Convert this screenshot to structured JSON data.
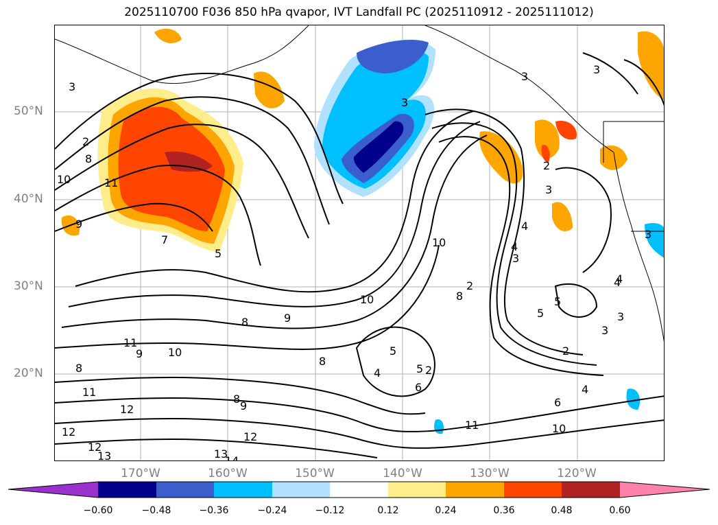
{
  "title": "2025110700 F036 850 hPa qvapor, IVT Landfall PC (2025110912 - 2025111012)",
  "axes": {
    "lat_labels": [
      "50°N",
      "40°N",
      "30°N",
      "20°N"
    ],
    "lon_labels": [
      "170°W",
      "160°W",
      "150°W",
      "140°W",
      "130°W",
      "120°W"
    ]
  },
  "colorbar": {
    "ticks": [
      "−0.60",
      "−0.48",
      "−0.36",
      "−0.24",
      "−0.12",
      "0.12",
      "0.24",
      "0.36",
      "0.48",
      "0.60"
    ],
    "colors": [
      "#9932cc",
      "#00008b",
      "#3a5fcd",
      "#00bfff",
      "#b0e2ff",
      "#ffffff",
      "#ffec8b",
      "#ffa500",
      "#ff4500",
      "#b22222",
      "#ff82ab"
    ]
  },
  "contour_labels": [
    "3",
    "3",
    "3",
    "3",
    "2",
    "8",
    "10",
    "11",
    "9",
    "7",
    "5",
    "10",
    "4",
    "4",
    "3",
    "2",
    "8",
    "5",
    "5",
    "3",
    "2",
    "3",
    "4",
    "8",
    "9",
    "10",
    "11",
    "9",
    "10",
    "8",
    "8",
    "9",
    "8",
    "12",
    "11",
    "12",
    "12",
    "13",
    "13",
    "14",
    "5",
    "4",
    "5",
    "2",
    "4",
    "6",
    "6",
    "10",
    "11",
    "12",
    "3",
    "3",
    "4",
    "2"
  ]
}
